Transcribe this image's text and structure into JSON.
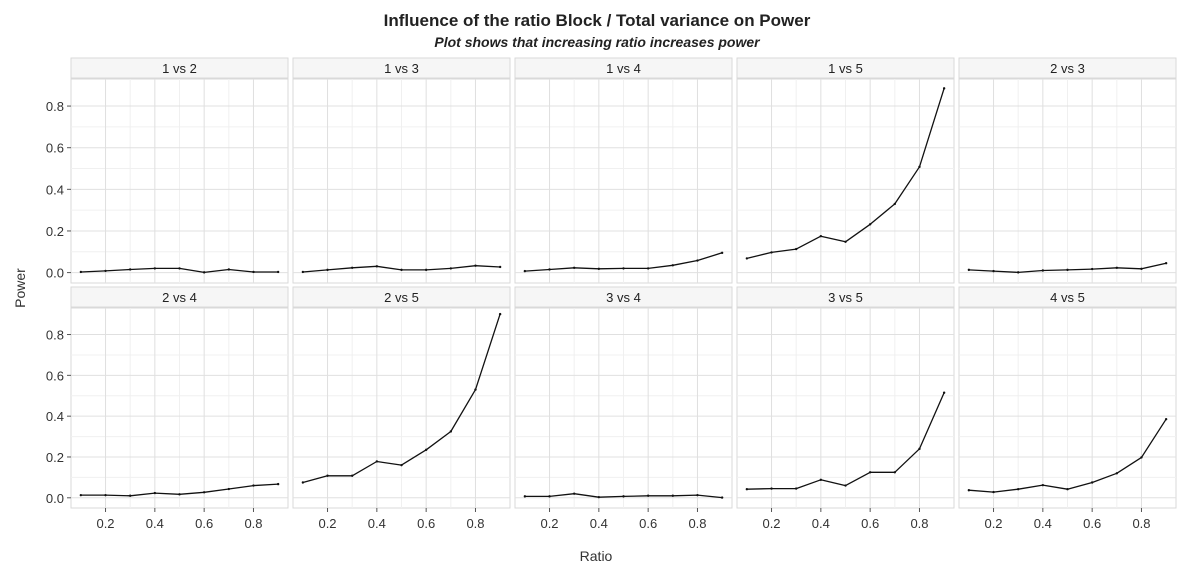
{
  "chart_data": {
    "type": "line",
    "title": "Influence of the ratio Block / Total variance on Power",
    "subtitle": "Plot shows that increasing ratio increases power",
    "xlabel": "Ratio",
    "ylabel": "Power",
    "xlim": [
      0.06,
      0.94
    ],
    "ylim": [
      -0.05,
      0.93
    ],
    "x_ticks": [
      "0.2",
      "0.4",
      "0.6",
      "0.8"
    ],
    "y_ticks": [
      "0.0",
      "0.2",
      "0.4",
      "0.6",
      "0.8"
    ],
    "grid": true,
    "line_color": "#111111",
    "x": [
      0.1,
      0.2,
      0.3,
      0.4,
      0.5,
      0.6,
      0.7,
      0.8,
      0.9
    ],
    "panels": [
      {
        "label": "1 vs 2",
        "values": [
          0.003,
          0.008,
          0.015,
          0.02,
          0.02,
          0.001,
          0.015,
          0.003,
          0.003
        ]
      },
      {
        "label": "1 vs 3",
        "values": [
          0.003,
          0.013,
          0.023,
          0.03,
          0.013,
          0.013,
          0.02,
          0.033,
          0.027
        ]
      },
      {
        "label": "1 vs 4",
        "values": [
          0.007,
          0.015,
          0.023,
          0.018,
          0.02,
          0.02,
          0.035,
          0.058,
          0.095
        ]
      },
      {
        "label": "1 vs 5",
        "values": [
          0.068,
          0.097,
          0.113,
          0.175,
          0.148,
          0.232,
          0.33,
          0.508,
          0.885
        ]
      },
      {
        "label": "2 vs 3",
        "values": [
          0.013,
          0.007,
          0.001,
          0.01,
          0.013,
          0.017,
          0.023,
          0.018,
          0.045
        ]
      },
      {
        "label": "2 vs 4",
        "values": [
          0.013,
          0.013,
          0.01,
          0.023,
          0.017,
          0.027,
          0.043,
          0.06,
          0.067
        ]
      },
      {
        "label": "2 vs 5",
        "values": [
          0.075,
          0.108,
          0.108,
          0.178,
          0.16,
          0.235,
          0.325,
          0.53,
          0.9
        ]
      },
      {
        "label": "3 vs 4",
        "values": [
          0.007,
          0.007,
          0.02,
          0.003,
          0.007,
          0.01,
          0.01,
          0.013,
          0.001
        ]
      },
      {
        "label": "3 vs 5",
        "values": [
          0.042,
          0.045,
          0.045,
          0.088,
          0.06,
          0.125,
          0.125,
          0.24,
          0.515
        ]
      },
      {
        "label": "4 vs 5",
        "values": [
          0.037,
          0.028,
          0.042,
          0.062,
          0.042,
          0.075,
          0.12,
          0.198,
          0.385
        ]
      }
    ]
  }
}
